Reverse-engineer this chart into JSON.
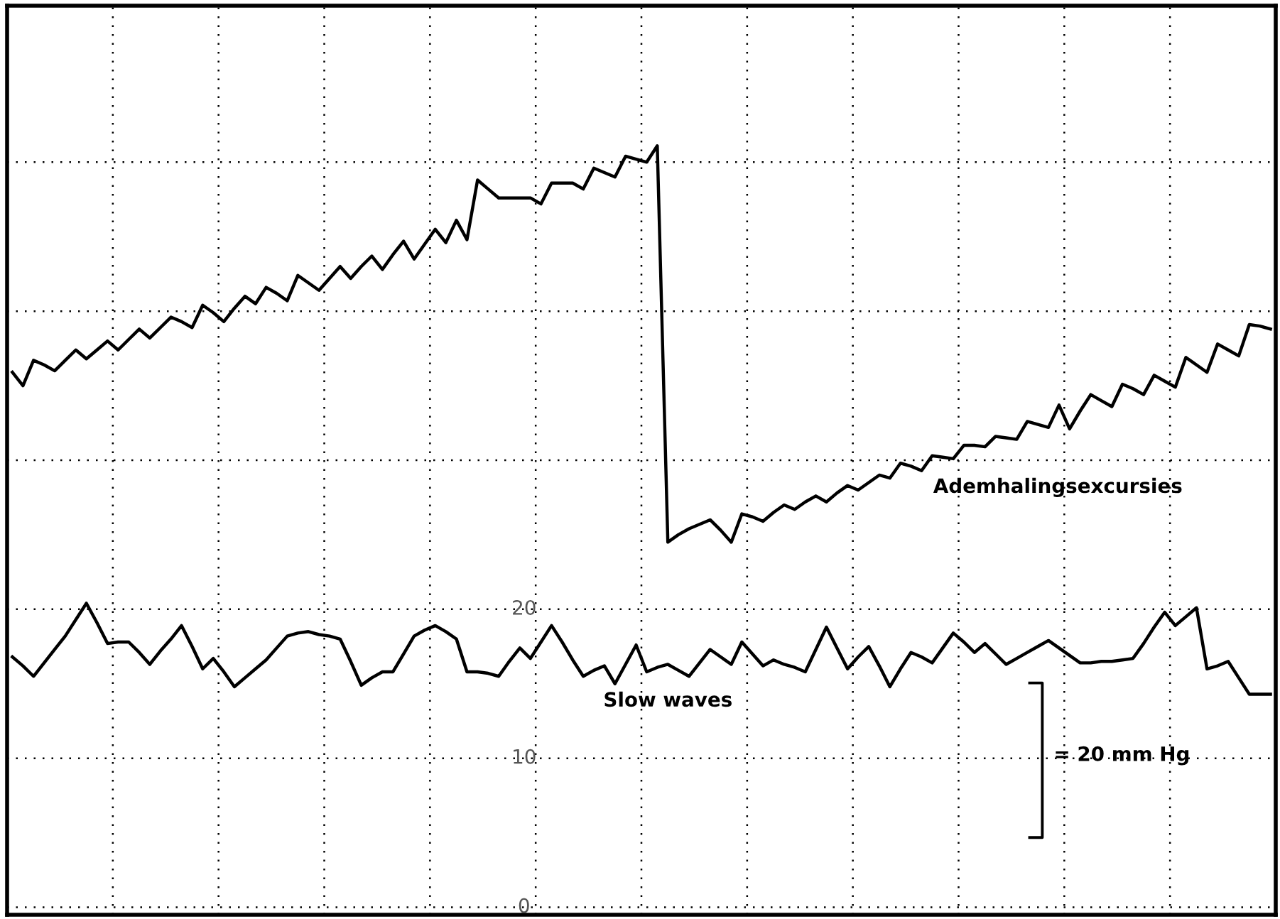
{
  "chart_data": {
    "type": "line",
    "tick_labels": "y",
    "grid": true,
    "line_style": "solid",
    "marker": "none",
    "categories": [
      null,
      null,
      null,
      null,
      null,
      null,
      null,
      null,
      null,
      null,
      null,
      null,
      null,
      null,
      null,
      null,
      null,
      null,
      null,
      null,
      null,
      null,
      null,
      null,
      null,
      null,
      null,
      null,
      null,
      null,
      null,
      null,
      null,
      null,
      null,
      null,
      null,
      null,
      null,
      null,
      null,
      null,
      null,
      null,
      null,
      null,
      null,
      null,
      null,
      null,
      null,
      null,
      null,
      null,
      null,
      null,
      null,
      null,
      null,
      null,
      null,
      null,
      null,
      null,
      null,
      null,
      null,
      null,
      null,
      null,
      null,
      null,
      null,
      null,
      null,
      null,
      null,
      null,
      null,
      null,
      null,
      null,
      null,
      null,
      null,
      null,
      null,
      null,
      null,
      null,
      null,
      null,
      null,
      null,
      null,
      null,
      null,
      null,
      null,
      null,
      null,
      null,
      null,
      null,
      null,
      null,
      null,
      null,
      null,
      null,
      null,
      null,
      null,
      null,
      null,
      null,
      null,
      null,
      null,
      null
    ],
    "ylim": [
      -0.5,
      60.5
    ],
    "yticks": [
      0,
      10,
      20,
      {
        "value": 30,
        "label": null
      },
      {
        "value": 40,
        "label": null
      },
      {
        "value": 50,
        "label": null
      }
    ],
    "series": [
      {
        "name": "Ademhalingsexcursies",
        "color": "#000000",
        "values": [
          35.9,
          35.0,
          36.7,
          36.4,
          36.0,
          36.7,
          37.4,
          36.8,
          37.4,
          38.0,
          37.4,
          38.1,
          38.8,
          38.2,
          38.9,
          39.6,
          39.3,
          38.9,
          40.4,
          39.9,
          39.3,
          40.2,
          41.0,
          40.5,
          41.6,
          41.2,
          40.7,
          42.4,
          41.9,
          41.4,
          42.2,
          43.0,
          42.2,
          43.0,
          43.7,
          42.8,
          43.8,
          44.7,
          43.5,
          44.5,
          45.5,
          44.6,
          46.1,
          44.8,
          48.8,
          48.2,
          47.6,
          47.6,
          47.6,
          47.6,
          47.2,
          48.6,
          48.6,
          48.6,
          48.2,
          49.6,
          49.3,
          49.0,
          50.4,
          50.2,
          50.0,
          51.1,
          24.5,
          25.0,
          25.4,
          25.7,
          26.0,
          25.3,
          24.5,
          26.4,
          26.2,
          25.9,
          26.5,
          27.0,
          26.7,
          27.2,
          27.6,
          27.2,
          27.8,
          28.3,
          28.0,
          28.5,
          29.0,
          28.8,
          29.8,
          29.6,
          29.3,
          30.3,
          30.2,
          30.1,
          31.0,
          31.0,
          30.9,
          31.6,
          31.5,
          31.4,
          32.6,
          32.4,
          32.2,
          33.7,
          32.1,
          33.3,
          34.4,
          34.0,
          33.6,
          35.1,
          34.8,
          34.4,
          35.7,
          35.3,
          34.9,
          36.9,
          36.4,
          35.9,
          37.8,
          37.4,
          37.0,
          39.1,
          39.0,
          38.8
        ]
      },
      {
        "name": "Slow waves",
        "color": "#000000",
        "values": [
          16.8,
          16.2,
          15.5,
          16.4,
          17.3,
          18.2,
          19.3,
          20.4,
          19.1,
          17.7,
          17.8,
          17.8,
          17.1,
          16.3,
          17.2,
          18.0,
          18.9,
          17.5,
          16.0,
          16.7,
          15.8,
          14.8,
          15.4,
          16.0,
          16.6,
          17.4,
          18.2,
          18.4,
          18.5,
          18.3,
          18.2,
          18.0,
          16.5,
          14.9,
          15.4,
          15.8,
          15.8,
          17.0,
          18.2,
          18.6,
          18.9,
          18.5,
          18.0,
          15.8,
          15.8,
          15.7,
          15.5,
          16.5,
          17.4,
          16.7,
          17.8,
          18.9,
          17.8,
          16.6,
          15.5,
          15.9,
          16.2,
          15.0,
          16.3,
          17.6,
          15.8,
          16.1,
          16.3,
          15.9,
          15.5,
          16.4,
          17.3,
          16.8,
          16.3,
          17.8,
          17.0,
          16.2,
          16.6,
          16.3,
          16.1,
          15.8,
          17.3,
          18.8,
          17.4,
          16.0,
          16.8,
          17.5,
          16.2,
          14.8,
          16.0,
          17.1,
          16.8,
          16.4,
          17.4,
          18.4,
          17.8,
          17.1,
          17.7,
          17.0,
          16.3,
          16.7,
          17.1,
          17.5,
          17.9,
          17.4,
          16.9,
          16.4,
          16.4,
          16.5,
          16.5,
          16.6,
          16.7,
          17.7,
          18.8,
          19.8,
          18.9,
          19.5,
          20.1,
          16.0,
          16.2,
          16.5,
          15.4,
          14.3,
          14.3,
          14.3
        ]
      }
    ],
    "annotations": [
      "= 20 mm Hg"
    ]
  }
}
